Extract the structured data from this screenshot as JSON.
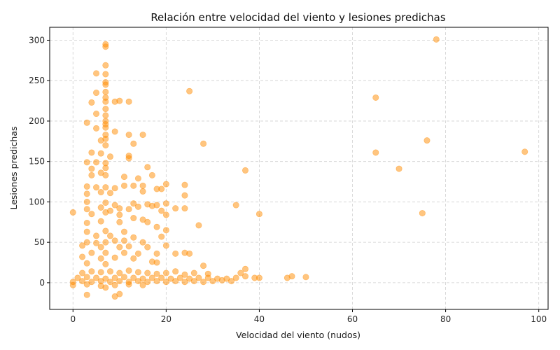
{
  "chart_data": {
    "type": "scatter",
    "title": "Relación entre velocidad del viento y lesiones predichas",
    "xlabel": "Velocidad del viento (nudos)",
    "ylabel": "Lesiones predichas",
    "xlim": [
      -5,
      102
    ],
    "ylim": [
      -33,
      316
    ],
    "xticks": [
      0,
      20,
      40,
      60,
      80,
      100
    ],
    "yticks": [
      0,
      50,
      100,
      150,
      200,
      250,
      300
    ],
    "grid": true,
    "grid_style": "dashed",
    "marker_color": "#ff8c00",
    "marker_alpha": 0.5,
    "series": [
      {
        "points": [
          [
            78,
            301
          ],
          [
            7,
            295
          ],
          [
            7,
            292
          ],
          [
            7,
            269
          ],
          [
            7,
            258
          ],
          [
            5,
            259
          ],
          [
            7,
            248
          ],
          [
            7,
            245
          ],
          [
            7,
            236
          ],
          [
            5,
            235
          ],
          [
            25,
            237
          ],
          [
            7,
            229
          ],
          [
            65,
            229
          ],
          [
            4,
            223
          ],
          [
            7,
            224
          ],
          [
            9,
            224
          ],
          [
            10,
            225
          ],
          [
            12,
            224
          ],
          [
            7,
            215
          ],
          [
            5,
            209
          ],
          [
            7,
            207
          ],
          [
            7,
            200
          ],
          [
            3,
            198
          ],
          [
            7,
            196
          ],
          [
            7,
            192
          ],
          [
            5,
            191
          ],
          [
            9,
            187
          ],
          [
            7,
            183
          ],
          [
            12,
            183
          ],
          [
            15,
            183
          ],
          [
            7,
            178
          ],
          [
            6,
            176
          ],
          [
            13,
            172
          ],
          [
            28,
            172
          ],
          [
            76,
            176
          ],
          [
            7,
            170
          ],
          [
            4,
            161
          ],
          [
            6,
            160
          ],
          [
            8,
            156
          ],
          [
            12,
            157
          ],
          [
            12,
            154
          ],
          [
            65,
            161
          ],
          [
            97,
            162
          ],
          [
            3,
            149
          ],
          [
            5,
            149
          ],
          [
            7,
            148
          ],
          [
            7,
            142
          ],
          [
            4,
            141
          ],
          [
            16,
            143
          ],
          [
            37,
            139
          ],
          [
            70,
            141
          ],
          [
            6,
            136
          ],
          [
            7,
            133
          ],
          [
            4,
            133
          ],
          [
            11,
            131
          ],
          [
            17,
            133
          ],
          [
            14,
            129
          ],
          [
            3,
            119
          ],
          [
            5,
            118
          ],
          [
            7,
            118
          ],
          [
            9,
            117
          ],
          [
            11,
            120
          ],
          [
            13,
            120
          ],
          [
            15,
            120
          ],
          [
            19,
            116
          ],
          [
            20,
            122
          ],
          [
            24,
            121
          ],
          [
            3,
            110
          ],
          [
            6,
            112
          ],
          [
            8,
            111
          ],
          [
            15,
            113
          ],
          [
            18,
            116
          ],
          [
            24,
            108
          ],
          [
            3,
            100
          ],
          [
            7,
            99
          ],
          [
            9,
            96
          ],
          [
            13,
            98
          ],
          [
            16,
            97
          ],
          [
            18,
            96
          ],
          [
            20,
            98
          ],
          [
            0,
            87
          ],
          [
            3,
            91
          ],
          [
            6,
            93
          ],
          [
            8,
            89
          ],
          [
            10,
            92
          ],
          [
            12,
            91
          ],
          [
            14,
            94
          ],
          [
            17,
            95
          ],
          [
            19,
            89
          ],
          [
            22,
            92
          ],
          [
            24,
            92
          ],
          [
            35,
            96
          ],
          [
            40,
            85
          ],
          [
            75,
            86
          ],
          [
            4,
            85
          ],
          [
            7,
            87
          ],
          [
            10,
            84
          ],
          [
            13,
            80
          ],
          [
            15,
            78
          ],
          [
            20,
            84
          ],
          [
            3,
            74
          ],
          [
            6,
            76
          ],
          [
            10,
            75
          ],
          [
            16,
            75
          ],
          [
            18,
            69
          ],
          [
            27,
            71
          ],
          [
            3,
            63
          ],
          [
            7,
            64
          ],
          [
            11,
            63
          ],
          [
            20,
            65
          ],
          [
            5,
            58
          ],
          [
            8,
            58
          ],
          [
            13,
            56
          ],
          [
            19,
            57
          ],
          [
            3,
            50
          ],
          [
            5,
            49
          ],
          [
            7,
            50
          ],
          [
            9,
            52
          ],
          [
            11,
            52
          ],
          [
            15,
            50
          ],
          [
            2,
            46
          ],
          [
            6,
            44
          ],
          [
            10,
            44
          ],
          [
            12,
            45
          ],
          [
            16,
            44
          ],
          [
            20,
            46
          ],
          [
            4,
            37
          ],
          [
            7,
            37
          ],
          [
            11,
            37
          ],
          [
            14,
            36
          ],
          [
            18,
            36
          ],
          [
            22,
            36
          ],
          [
            24,
            37
          ],
          [
            25,
            36
          ],
          [
            2,
            32
          ],
          [
            6,
            30
          ],
          [
            9,
            31
          ],
          [
            13,
            30
          ],
          [
            17,
            26
          ],
          [
            3,
            24
          ],
          [
            7,
            23
          ],
          [
            18,
            25
          ],
          [
            28,
            21
          ],
          [
            2,
            12
          ],
          [
            4,
            14
          ],
          [
            6,
            13
          ],
          [
            8,
            14
          ],
          [
            10,
            12
          ],
          [
            12,
            15
          ],
          [
            14,
            13
          ],
          [
            16,
            12
          ],
          [
            18,
            11
          ],
          [
            20,
            12
          ],
          [
            22,
            14
          ],
          [
            24,
            10
          ],
          [
            26,
            12
          ],
          [
            29,
            11
          ],
          [
            1,
            6
          ],
          [
            3,
            7
          ],
          [
            5,
            6
          ],
          [
            7,
            5
          ],
          [
            9,
            6
          ],
          [
            11,
            7
          ],
          [
            13,
            6
          ],
          [
            15,
            5
          ],
          [
            17,
            6
          ],
          [
            19,
            6
          ],
          [
            21,
            5
          ],
          [
            23,
            6
          ],
          [
            25,
            5
          ],
          [
            27,
            6
          ],
          [
            29,
            6
          ],
          [
            31,
            5
          ],
          [
            33,
            5
          ],
          [
            35,
            6
          ],
          [
            37,
            8
          ],
          [
            39,
            6
          ],
          [
            40,
            6
          ],
          [
            46,
            6
          ],
          [
            47,
            8
          ],
          [
            50,
            7
          ],
          [
            36,
            12
          ],
          [
            37,
            17
          ],
          [
            0,
            1
          ],
          [
            2,
            2
          ],
          [
            4,
            1
          ],
          [
            6,
            2
          ],
          [
            8,
            1
          ],
          [
            10,
            2
          ],
          [
            12,
            1
          ],
          [
            14,
            2
          ],
          [
            16,
            1
          ],
          [
            18,
            2
          ],
          [
            20,
            1
          ],
          [
            22,
            2
          ],
          [
            24,
            1
          ],
          [
            26,
            2
          ],
          [
            28,
            1
          ],
          [
            30,
            2
          ],
          [
            32,
            3
          ],
          [
            34,
            2
          ],
          [
            0,
            -3
          ],
          [
            3,
            -2
          ],
          [
            6,
            -4
          ],
          [
            9,
            -3
          ],
          [
            12,
            -2
          ],
          [
            15,
            -3
          ],
          [
            7,
            -6
          ],
          [
            3,
            -15
          ],
          [
            9,
            -17
          ],
          [
            10,
            -14
          ]
        ]
      }
    ]
  }
}
